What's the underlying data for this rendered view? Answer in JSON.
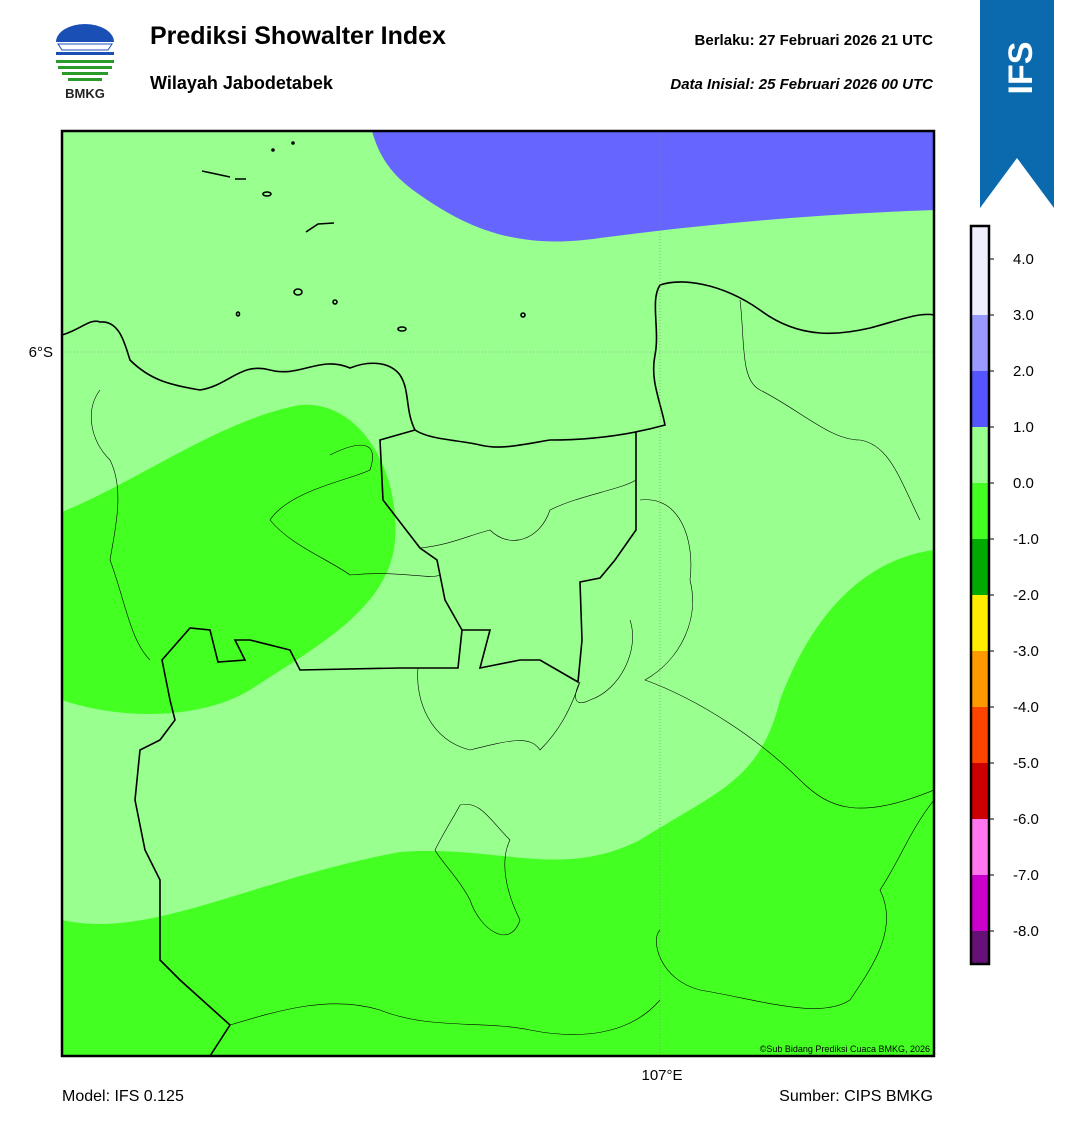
{
  "header": {
    "logo_text": "BMKG",
    "title": "Prediksi Showalter Index",
    "subtitle": "Wilayah Jabodetabek",
    "valid": "Berlaku:  27 Februari 2026 21 UTC",
    "init": "Data Inisial:  25 Februari 2026 00 UTC",
    "badge": "IFS"
  },
  "map": {
    "lat_label": "6°S",
    "lon_label": "107°E",
    "credit": "©Sub Bidang Prediksi Cuaca BMKG, 2026"
  },
  "colorbar": {
    "labels": [
      "4.0",
      "3.0",
      "2.0",
      "1.0",
      "0.0",
      "-1.0",
      "-2.0",
      "-3.0",
      "-4.0",
      "-5.0",
      "-6.0",
      "-7.0",
      "-8.0"
    ],
    "colors": [
      "#eeeeff",
      "#9999ff",
      "#5555ff",
      "#99ff8f",
      "#44ff22",
      "#00aa00",
      "#ffee00",
      "#ff9900",
      "#ff4400",
      "#cc0000",
      "#ff77ee",
      "#cc00cc",
      "#661177"
    ]
  },
  "footer": {
    "model": "Model: IFS 0.125",
    "source": "Sumber: CIPS BMKG"
  }
}
